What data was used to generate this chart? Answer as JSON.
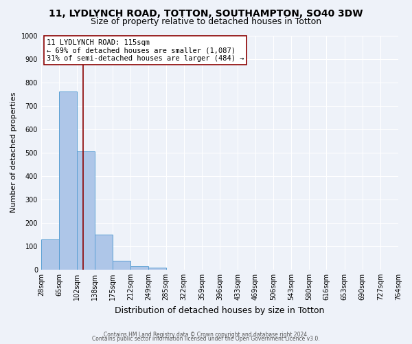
{
  "title": "11, LYDLYNCH ROAD, TOTTON, SOUTHAMPTON, SO40 3DW",
  "subtitle": "Size of property relative to detached houses in Totton",
  "xlabel": "Distribution of detached houses by size in Totton",
  "ylabel": "Number of detached properties",
  "bin_edges": [
    28,
    65,
    102,
    138,
    175,
    212,
    249,
    285,
    322,
    359,
    396,
    433,
    469,
    506,
    543,
    580,
    616,
    653,
    690,
    727,
    764
  ],
  "bar_heights": [
    128,
    760,
    505,
    150,
    37,
    14,
    8,
    0,
    0,
    0,
    0,
    0,
    0,
    0,
    0,
    0,
    0,
    0,
    0,
    0
  ],
  "bar_color": "#aec6e8",
  "bar_edge_color": "#5a9fd4",
  "property_size": 115,
  "vline_color": "#8b0000",
  "annotation_line1": "11 LYDLYNCH ROAD: 115sqm",
  "annotation_line2": "← 69% of detached houses are smaller (1,087)",
  "annotation_line3": "31% of semi-detached houses are larger (484) →",
  "annotation_box_color": "#ffffff",
  "annotation_box_edgecolor": "#8b0000",
  "ylim": [
    0,
    1000
  ],
  "yticks": [
    0,
    100,
    200,
    300,
    400,
    500,
    600,
    700,
    800,
    900,
    1000
  ],
  "footer_line1": "Contains HM Land Registry data © Crown copyright and database right 2024.",
  "footer_line2": "Contains public sector information licensed under the Open Government Licence v3.0.",
  "background_color": "#eef2f9",
  "grid_color": "#ffffff",
  "title_fontsize": 10,
  "subtitle_fontsize": 9,
  "xlabel_fontsize": 9,
  "ylabel_fontsize": 8,
  "annotation_fontsize": 7.5,
  "tick_fontsize": 7,
  "footer_fontsize": 5.5
}
